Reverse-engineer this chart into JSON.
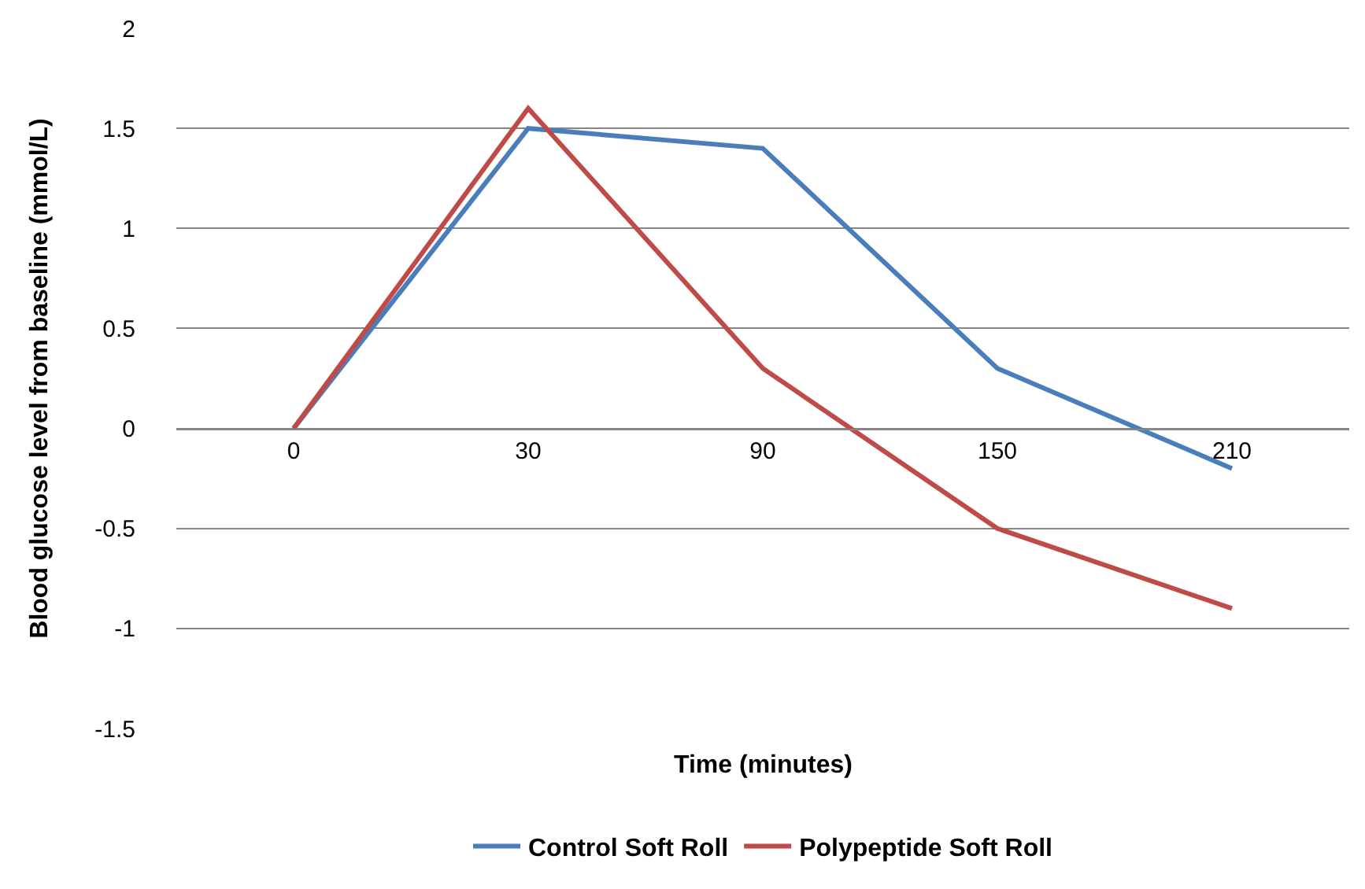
{
  "chart_data": {
    "type": "line",
    "xlabel": "Time (minutes)",
    "ylabel": "Blood glucose level from baseline (mmol/L)",
    "categories": [
      "0",
      "30",
      "90",
      "150",
      "210"
    ],
    "series": [
      {
        "name": "Control Soft Roll",
        "color": "#4a7ebb",
        "values": [
          0,
          1.5,
          1.4,
          0.3,
          -0.2
        ]
      },
      {
        "name": "Polypeptide Soft Roll",
        "color": "#be4b48",
        "values": [
          0,
          1.6,
          0.3,
          -0.5,
          -0.9
        ]
      }
    ],
    "ylim": [
      -1.5,
      2
    ],
    "yticks": [
      -1.5,
      -1,
      -0.5,
      0,
      0.5,
      1,
      1.5,
      2
    ],
    "grid": "y",
    "legend": "bottom",
    "marker": "none",
    "line_style": "solid"
  }
}
